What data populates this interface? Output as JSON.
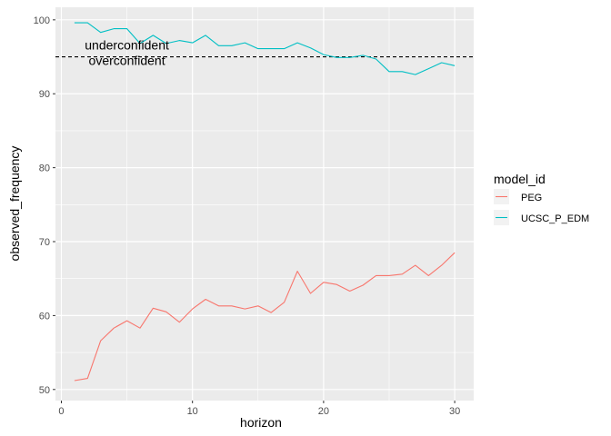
{
  "chart_data": {
    "type": "line",
    "xlabel": "horizon",
    "ylabel": "observed_frequency",
    "xlim": [
      -0.45,
      31.45
    ],
    "ylim": [
      48.5,
      101.7
    ],
    "x_ticks": [
      0,
      10,
      20,
      30
    ],
    "y_ticks": [
      50,
      60,
      70,
      80,
      90,
      100
    ],
    "grid": true,
    "panel_background": "#ebebeb",
    "reference_line": {
      "y": 95,
      "style": "dashed",
      "color": "#000000"
    },
    "annotations": [
      {
        "text": "underconfident",
        "x": 5,
        "y": 96.0
      },
      {
        "text": "overconfident",
        "x": 5,
        "y": 93.9
      }
    ],
    "legend": {
      "title": "model_id",
      "position": "right"
    },
    "x": [
      1,
      2,
      3,
      4,
      5,
      6,
      7,
      8,
      9,
      10,
      11,
      12,
      13,
      14,
      15,
      16,
      17,
      18,
      19,
      20,
      21,
      22,
      23,
      24,
      25,
      26,
      27,
      28,
      29,
      30
    ],
    "series": [
      {
        "name": "PEG",
        "color": "#F8766D",
        "values": [
          51.2,
          51.5,
          56.6,
          58.3,
          59.3,
          58.3,
          61.0,
          60.5,
          59.1,
          60.9,
          62.2,
          61.3,
          61.3,
          60.9,
          61.3,
          60.4,
          61.8,
          66.0,
          63.0,
          64.5,
          64.2,
          63.3,
          64.1,
          65.4,
          65.4,
          65.6,
          66.8,
          65.4,
          66.8,
          68.5
        ]
      },
      {
        "name": "UCSC_P_EDM",
        "color": "#00BFC4",
        "values": [
          99.6,
          99.6,
          98.3,
          98.8,
          98.8,
          96.8,
          97.9,
          96.8,
          97.2,
          96.9,
          97.9,
          96.5,
          96.5,
          96.9,
          96.1,
          96.1,
          96.1,
          96.9,
          96.2,
          95.3,
          94.9,
          94.9,
          95.2,
          94.7,
          93.0,
          93.0,
          92.6,
          93.4,
          94.2,
          93.8
        ]
      }
    ]
  }
}
